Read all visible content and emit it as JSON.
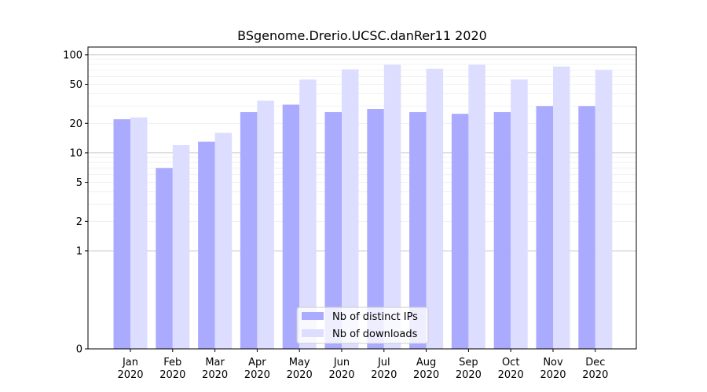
{
  "chart_data": {
    "type": "bar",
    "title": "BSgenome.Drerio.UCSC.danRer11 2020",
    "xlabel": "",
    "ylabel": "",
    "y_scale": "symlog",
    "ylim": [
      0,
      120
    ],
    "y_ticks": [
      0,
      1,
      2,
      5,
      10,
      20,
      50,
      100
    ],
    "categories": [
      "Jan\n2020",
      "Feb\n2020",
      "Mar\n2020",
      "Apr\n2020",
      "May\n2020",
      "Jun\n2020",
      "Jul\n2020",
      "Aug\n2020",
      "Sep\n2020",
      "Oct\n2020",
      "Nov\n2020",
      "Dec\n2020"
    ],
    "series": [
      {
        "name": "Nb of distinct IPs",
        "color": "#aaaaff",
        "values": [
          22,
          7,
          13,
          26,
          31,
          26,
          28,
          26,
          25,
          26,
          30,
          30
        ]
      },
      {
        "name": "Nb of downloads",
        "color": "#ddddff",
        "values": [
          23,
          12,
          16,
          34,
          56,
          71,
          79,
          72,
          79,
          56,
          76,
          70
        ]
      }
    ],
    "legend_position": "lower-center",
    "grid": true
  }
}
